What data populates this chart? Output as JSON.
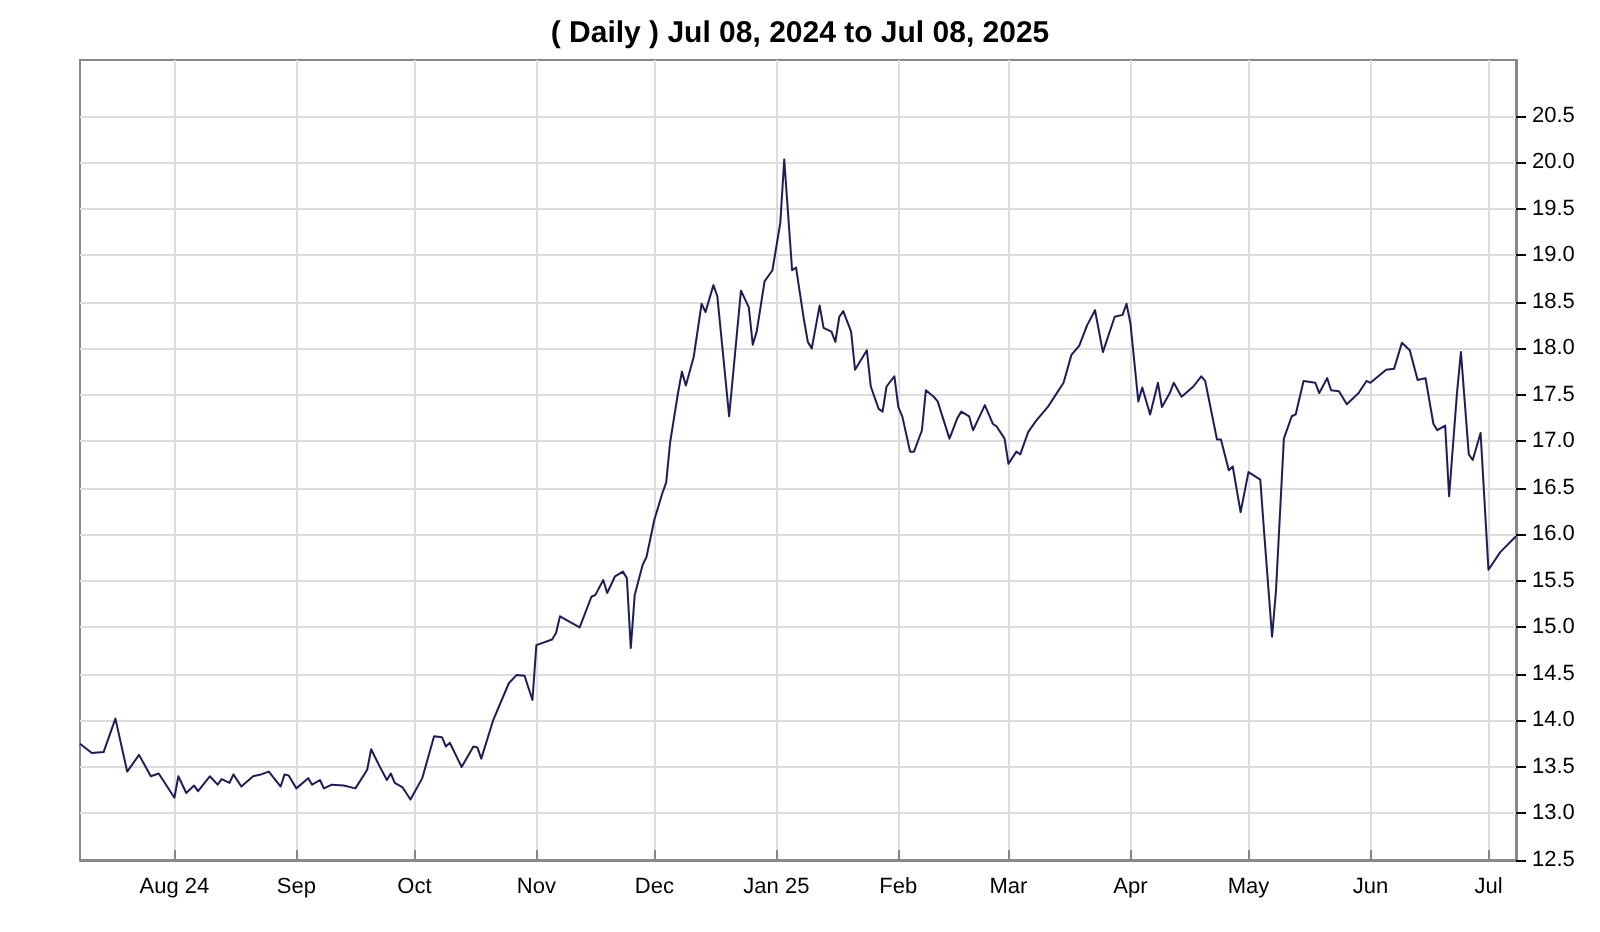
{
  "chart_data": {
    "type": "line",
    "title": "( Daily ) Jul 08, 2024 to Jul 08, 2025",
    "x": [
      "2024-07-08",
      "2024-07-11",
      "2024-07-14",
      "2024-07-17",
      "2024-07-20",
      "2024-07-23",
      "2024-07-26",
      "2024-07-28",
      "2024-08-01",
      "2024-08-02",
      "2024-08-04",
      "2024-08-06",
      "2024-08-07",
      "2024-08-10",
      "2024-08-12",
      "2024-08-13",
      "2024-08-15",
      "2024-08-16",
      "2024-08-18",
      "2024-08-21",
      "2024-08-23",
      "2024-08-25",
      "2024-08-28",
      "2024-08-29",
      "2024-08-30",
      "2024-09-01",
      "2024-09-04",
      "2024-09-05",
      "2024-09-07",
      "2024-09-08",
      "2024-09-10",
      "2024-09-13",
      "2024-09-16",
      "2024-09-19",
      "2024-09-20",
      "2024-09-22",
      "2024-09-24",
      "2024-09-25",
      "2024-09-26",
      "2024-09-28",
      "2024-09-30",
      "2024-10-03",
      "2024-10-06",
      "2024-10-08",
      "2024-10-09",
      "2024-10-10",
      "2024-10-13",
      "2024-10-16",
      "2024-10-17",
      "2024-10-18",
      "2024-10-21",
      "2024-10-25",
      "2024-10-27",
      "2024-10-29",
      "2024-10-31",
      "2024-11-01",
      "2024-11-05",
      "2024-11-06",
      "2024-11-07",
      "2024-11-12",
      "2024-11-15",
      "2024-11-16",
      "2024-11-18",
      "2024-11-19",
      "2024-11-21",
      "2024-11-23",
      "2024-11-24",
      "2024-11-25",
      "2024-11-26",
      "2024-11-28",
      "2024-11-29",
      "2024-12-01",
      "2024-12-03",
      "2024-12-04",
      "2024-12-05",
      "2024-12-07",
      "2024-12-08",
      "2024-12-09",
      "2024-12-11",
      "2024-12-13",
      "2024-12-14",
      "2024-12-16",
      "2024-12-17",
      "2024-12-20",
      "2024-12-23",
      "2024-12-25",
      "2024-12-26",
      "2024-12-27",
      "2024-12-29",
      "2024-12-31",
      "2025-01-02",
      "2025-01-03",
      "2025-01-05",
      "2025-01-06",
      "2025-01-08",
      "2025-01-09",
      "2025-01-10",
      "2025-01-12",
      "2025-01-13",
      "2025-01-15",
      "2025-01-16",
      "2025-01-17",
      "2025-01-18",
      "2025-01-20",
      "2025-01-21",
      "2025-01-22",
      "2025-01-24",
      "2025-01-25",
      "2025-01-27",
      "2025-01-28",
      "2025-01-29",
      "2025-01-31",
      "2025-02-01",
      "2025-02-02",
      "2025-02-04",
      "2025-02-05",
      "2025-02-07",
      "2025-02-08",
      "2025-02-10",
      "2025-02-11",
      "2025-02-14",
      "2025-02-16",
      "2025-02-17",
      "2025-02-19",
      "2025-02-20",
      "2025-02-23",
      "2025-02-25",
      "2025-02-26",
      "2025-02-28",
      "2025-03-01",
      "2025-03-03",
      "2025-03-04",
      "2025-03-06",
      "2025-03-08",
      "2025-03-11",
      "2025-03-13",
      "2025-03-15",
      "2025-03-17",
      "2025-03-19",
      "2025-03-21",
      "2025-03-23",
      "2025-03-25",
      "2025-03-28",
      "2025-03-30",
      "2025-03-31",
      "2025-04-01",
      "2025-04-03",
      "2025-04-04",
      "2025-04-06",
      "2025-04-08",
      "2025-04-09",
      "2025-04-11",
      "2025-04-12",
      "2025-04-14",
      "2025-04-17",
      "2025-04-19",
      "2025-04-20",
      "2025-04-23",
      "2025-04-24",
      "2025-04-26",
      "2025-04-27",
      "2025-04-29",
      "2025-05-01",
      "2025-05-04",
      "2025-05-05",
      "2025-05-07",
      "2025-05-08",
      "2025-05-10",
      "2025-05-12",
      "2025-05-13",
      "2025-05-15",
      "2025-05-18",
      "2025-05-19",
      "2025-05-21",
      "2025-05-22",
      "2025-05-24",
      "2025-05-26",
      "2025-05-29",
      "2025-05-31",
      "2025-06-01",
      "2025-06-05",
      "2025-06-07",
      "2025-06-09",
      "2025-06-11",
      "2025-06-13",
      "2025-06-15",
      "2025-06-17",
      "2025-06-18",
      "2025-06-20",
      "2025-06-21",
      "2025-06-23",
      "2025-06-24",
      "2025-06-26",
      "2025-06-27",
      "2025-06-29",
      "2025-07-01",
      "2025-07-04",
      "2025-07-08"
    ],
    "series": [
      {
        "color": "#1c1c5c",
        "values": [
          13.75,
          13.65,
          13.66,
          14.02,
          13.45,
          13.63,
          13.4,
          13.43,
          13.17,
          13.4,
          13.22,
          13.3,
          13.24,
          13.4,
          13.31,
          13.37,
          13.33,
          13.42,
          13.29,
          13.4,
          13.42,
          13.45,
          13.29,
          13.42,
          13.41,
          13.27,
          13.38,
          13.31,
          13.36,
          13.27,
          13.31,
          13.3,
          13.27,
          13.47,
          13.69,
          13.52,
          13.36,
          13.43,
          13.33,
          13.28,
          13.15,
          13.38,
          13.83,
          13.82,
          13.72,
          13.76,
          13.5,
          13.72,
          13.71,
          13.59,
          14.0,
          14.4,
          14.49,
          14.48,
          14.22,
          14.81,
          14.87,
          14.94,
          15.12,
          15.0,
          15.33,
          15.35,
          15.51,
          15.37,
          15.55,
          15.6,
          15.53,
          14.78,
          15.35,
          15.67,
          15.76,
          16.16,
          16.44,
          16.56,
          16.99,
          17.52,
          17.75,
          17.6,
          17.91,
          18.48,
          18.39,
          18.68,
          18.56,
          17.27,
          18.62,
          18.44,
          18.04,
          18.18,
          18.72,
          18.84,
          19.35,
          20.03,
          18.84,
          18.87,
          18.31,
          18.07,
          18.0,
          18.46,
          18.22,
          18.18,
          18.07,
          18.34,
          18.4,
          18.18,
          17.77,
          17.84,
          17.98,
          17.59,
          17.35,
          17.32,
          17.59,
          17.7,
          17.37,
          17.27,
          16.89,
          16.89,
          17.12,
          17.55,
          17.48,
          17.43,
          17.03,
          17.25,
          17.32,
          17.27,
          17.12,
          17.39,
          17.19,
          17.16,
          17.03,
          16.76,
          16.89,
          16.86,
          17.1,
          17.22,
          17.37,
          17.5,
          17.63,
          17.93,
          18.03,
          18.25,
          18.41,
          17.96,
          18.34,
          18.36,
          18.48,
          18.27,
          17.43,
          17.58,
          17.29,
          17.63,
          17.37,
          17.52,
          17.63,
          17.48,
          17.59,
          17.7,
          17.65,
          17.02,
          17.02,
          16.69,
          16.73,
          16.24,
          16.67,
          16.59,
          16.01,
          14.9,
          15.4,
          17.03,
          17.27,
          17.29,
          17.65,
          17.63,
          17.52,
          17.68,
          17.55,
          17.54,
          17.4,
          17.52,
          17.65,
          17.63,
          17.77,
          17.78,
          18.06,
          17.98,
          17.66,
          17.68,
          17.19,
          17.12,
          17.17,
          16.41,
          17.52,
          17.96,
          16.86,
          16.8,
          17.09,
          15.62,
          15.81,
          15.98
        ]
      }
    ],
    "xlim": [
      "2024-07-08",
      "2025-07-08"
    ],
    "xticks": [
      {
        "value": "2024-08-01",
        "label": "Aug 24"
      },
      {
        "value": "2024-09-01",
        "label": "Sep"
      },
      {
        "value": "2024-10-01",
        "label": "Oct"
      },
      {
        "value": "2024-11-01",
        "label": "Nov"
      },
      {
        "value": "2024-12-01",
        "label": "Dec"
      },
      {
        "value": "2025-01-01",
        "label": "Jan 25"
      },
      {
        "value": "2025-02-01",
        "label": "Feb"
      },
      {
        "value": "2025-03-01",
        "label": "Mar"
      },
      {
        "value": "2025-04-01",
        "label": "Apr"
      },
      {
        "value": "2025-05-01",
        "label": "May"
      },
      {
        "value": "2025-06-01",
        "label": "Jun"
      },
      {
        "value": "2025-07-01",
        "label": "Jul"
      }
    ],
    "ylim": [
      12.5,
      21.1
    ],
    "yticks": [
      {
        "value": 12.5,
        "label": "12.5"
      },
      {
        "value": 13,
        "label": "13.0"
      },
      {
        "value": 13.5,
        "label": "13.5"
      },
      {
        "value": 14,
        "label": "14.0"
      },
      {
        "value": 14.5,
        "label": "14.5"
      },
      {
        "value": 15,
        "label": "15.0"
      },
      {
        "value": 15.5,
        "label": "15.5"
      },
      {
        "value": 16,
        "label": "16.0"
      },
      {
        "value": 16.5,
        "label": "16.5"
      },
      {
        "value": 17,
        "label": "17.0"
      },
      {
        "value": 17.5,
        "label": "17.5"
      },
      {
        "value": 18,
        "label": "18.0"
      },
      {
        "value": 18.5,
        "label": "18.5"
      },
      {
        "value": 19,
        "label": "19.0"
      },
      {
        "value": 19.5,
        "label": "19.5"
      },
      {
        "value": 20,
        "label": "20.0"
      },
      {
        "value": 20.5,
        "label": "20.5"
      }
    ],
    "grid": true
  }
}
